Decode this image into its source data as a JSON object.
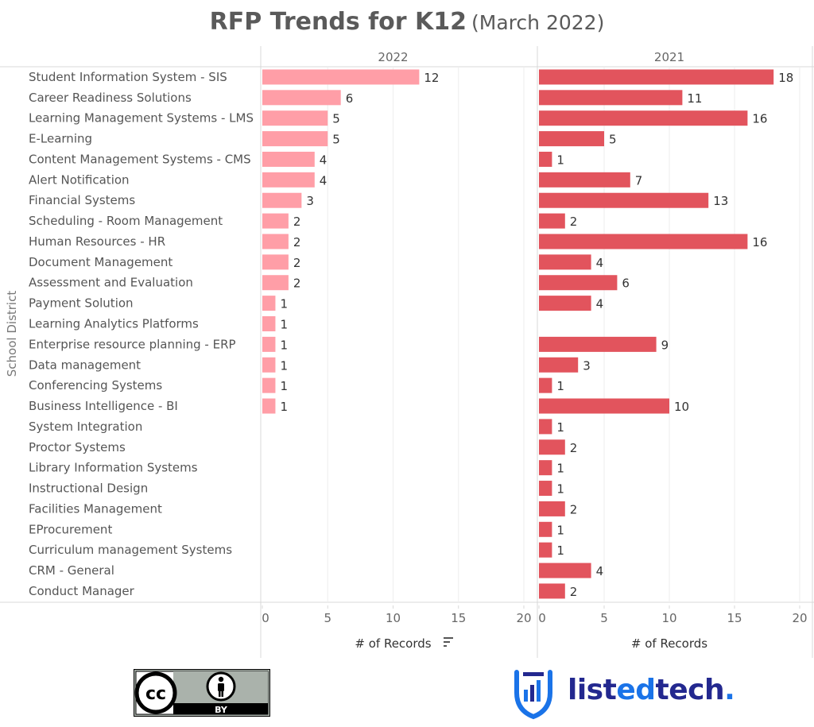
{
  "title": "RFP Trends for K12",
  "subtitle": "(March 2022)",
  "y_axis_title": "School District",
  "logos": {
    "cc_by": {
      "label": "BY",
      "icon": "cc-by-license-icon"
    },
    "brand": {
      "parts": [
        "list",
        "ed",
        "tech",
        "."
      ],
      "icon": "listedtech-logo-icon"
    }
  },
  "colors": {
    "series_2022": "#ff9ea7",
    "series_2021": "#e2545d"
  },
  "chart_data": {
    "type": "bar",
    "orientation": "horizontal",
    "categories": [
      "Student Information System - SIS",
      "Career Readiness Solutions",
      "Learning Management Systems - LMS",
      "E-Learning",
      "Content Management Systems - CMS",
      "Alert Notification",
      "Financial Systems",
      "Scheduling - Room Management",
      "Human Resources - HR",
      "Document Management",
      "Assessment and Evaluation",
      "Payment Solution",
      "Learning Analytics Platforms",
      "Enterprise resource planning - ERP",
      "Data management",
      "Conferencing Systems",
      "Business Intelligence - BI",
      "System Integration",
      "Proctor Systems",
      "Library Information Systems",
      "Instructional Design",
      "Facilities Management",
      "EProcurement",
      "Curriculum management Systems",
      "CRM - General",
      "Conduct Manager"
    ],
    "series": [
      {
        "name": "2022",
        "values": [
          12,
          6,
          5,
          5,
          4,
          4,
          3,
          2,
          2,
          2,
          2,
          1,
          1,
          1,
          1,
          1,
          1,
          null,
          null,
          null,
          null,
          null,
          null,
          null,
          null,
          null
        ]
      },
      {
        "name": "2021",
        "values": [
          18,
          11,
          16,
          5,
          1,
          7,
          13,
          2,
          16,
          4,
          6,
          4,
          null,
          9,
          3,
          1,
          10,
          1,
          2,
          1,
          1,
          2,
          1,
          1,
          4,
          2
        ]
      }
    ],
    "xlabel": "# of Records",
    "xlim": [
      0,
      20
    ],
    "xticks": [
      0,
      5,
      10,
      15,
      20
    ],
    "grid": true,
    "sort_indicator": "sort-descending-icon"
  }
}
